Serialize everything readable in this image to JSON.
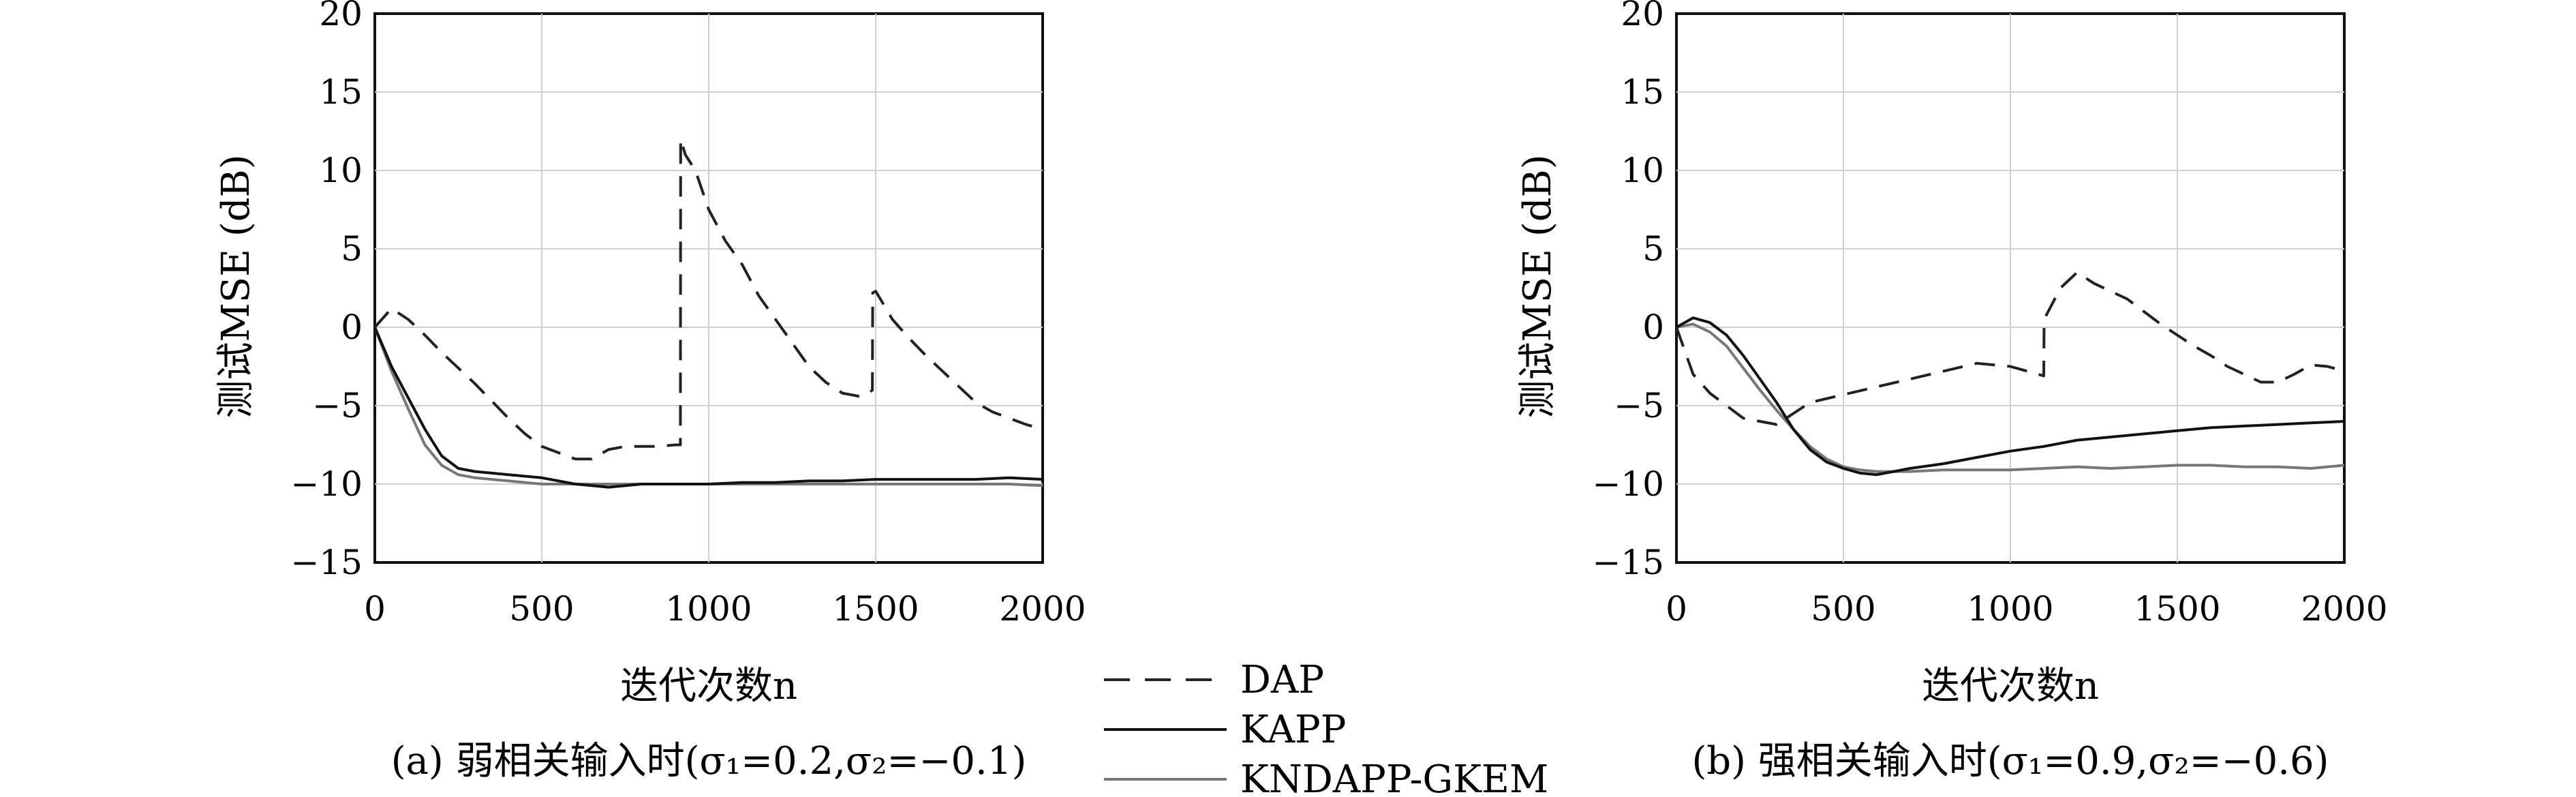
{
  "legend": [
    {
      "name": "DAP",
      "style": "dashed",
      "color": "#222222"
    },
    {
      "name": "KAPP",
      "style": "solid",
      "color": "#111111"
    },
    {
      "name": "KNDAPP-GKEM",
      "style": "solid",
      "color": "#777777"
    }
  ],
  "chart_data": [
    {
      "type": "line",
      "caption": "(a) 弱相关输入时(σ₁=0.2,σ₂=−0.1)",
      "xlabel": "迭代次数n",
      "ylabel": "测试MSE (dB)",
      "xlim": [
        0,
        2000
      ],
      "ylim": [
        -15,
        20
      ],
      "xticks": [
        "0",
        "500",
        "1000",
        "1500",
        "2000"
      ],
      "yticks": [
        "20",
        "15",
        "10",
        "5",
        "0",
        "−5",
        "−10",
        "−15"
      ],
      "grid": true,
      "series": [
        {
          "name": "DAP",
          "x": [
            0,
            50,
            100,
            150,
            200,
            250,
            300,
            350,
            400,
            450,
            500,
            550,
            600,
            650,
            700,
            750,
            800,
            850,
            900,
            915,
            916,
            930,
            960,
            1000,
            1050,
            1100,
            1150,
            1200,
            1250,
            1300,
            1350,
            1400,
            1450,
            1480,
            1490,
            1491,
            1500,
            1550,
            1600,
            1650,
            1700,
            1750,
            1800,
            1850,
            1900,
            1950,
            2000
          ],
          "y": [
            0,
            1.2,
            0.5,
            -0.5,
            -1.6,
            -2.6,
            -3.6,
            -4.7,
            -5.8,
            -6.8,
            -7.6,
            -8.0,
            -8.4,
            -8.4,
            -7.8,
            -7.6,
            -7.6,
            -7.6,
            -7.5,
            -7.5,
            12.0,
            11.0,
            10.0,
            7.5,
            5.5,
            4.0,
            2.0,
            0.5,
            -1.0,
            -2.5,
            -3.5,
            -4.2,
            -4.4,
            -4.2,
            -4.0,
            2.2,
            2.3,
            0.5,
            -0.7,
            -1.8,
            -2.8,
            -3.8,
            -4.8,
            -5.4,
            -5.8,
            -6.2,
            -6.5
          ]
        },
        {
          "name": "KAPP",
          "x": [
            0,
            50,
            100,
            150,
            200,
            250,
            300,
            350,
            400,
            450,
            500,
            550,
            600,
            650,
            700,
            800,
            900,
            1000,
            1100,
            1200,
            1300,
            1400,
            1500,
            1600,
            1700,
            1800,
            1900,
            2000
          ],
          "y": [
            0,
            -2.5,
            -4.5,
            -6.5,
            -8.2,
            -9.0,
            -9.2,
            -9.3,
            -9.4,
            -9.5,
            -9.6,
            -9.8,
            -10.0,
            -10.1,
            -10.2,
            -10.0,
            -10.0,
            -10.0,
            -9.9,
            -9.9,
            -9.8,
            -9.8,
            -9.7,
            -9.7,
            -9.7,
            -9.7,
            -9.6,
            -9.7
          ]
        },
        {
          "name": "KNDAPP-GKEM",
          "x": [
            0,
            50,
            100,
            150,
            200,
            250,
            300,
            350,
            400,
            450,
            500,
            600,
            700,
            800,
            900,
            1000,
            1100,
            1200,
            1300,
            1400,
            1500,
            1600,
            1700,
            1800,
            1900,
            2000
          ],
          "y": [
            0,
            -2.8,
            -5.2,
            -7.5,
            -8.8,
            -9.4,
            -9.6,
            -9.7,
            -9.8,
            -9.9,
            -10.0,
            -10.0,
            -10.0,
            -10.0,
            -10.0,
            -10.0,
            -10.0,
            -10.0,
            -10.0,
            -10.0,
            -10.0,
            -10.0,
            -10.0,
            -10.0,
            -10.0,
            -10.1
          ]
        }
      ]
    },
    {
      "type": "line",
      "caption": "(b) 强相关输入时(σ₁=0.9,σ₂=−0.6)",
      "xlabel": "迭代次数n",
      "ylabel": "测试MSE (dB)",
      "xlim": [
        0,
        2000
      ],
      "ylim": [
        -15,
        20
      ],
      "xticks": [
        "0",
        "500",
        "1000",
        "1500",
        "2000"
      ],
      "yticks": [
        "20",
        "15",
        "10",
        "5",
        "0",
        "−5",
        "−10",
        "−15"
      ],
      "grid": true,
      "series": [
        {
          "name": "DAP",
          "x": [
            0,
            50,
            100,
            150,
            200,
            250,
            300,
            350,
            400,
            500,
            600,
            700,
            800,
            900,
            1000,
            1050,
            1100,
            1101,
            1150,
            1200,
            1250,
            1300,
            1350,
            1400,
            1450,
            1500,
            1550,
            1600,
            1650,
            1700,
            1750,
            1800,
            1850,
            1900,
            1950,
            2000
          ],
          "y": [
            0,
            -3.0,
            -4.2,
            -5.0,
            -5.8,
            -6.0,
            -6.2,
            -5.5,
            -4.8,
            -4.3,
            -3.8,
            -3.3,
            -2.8,
            -2.3,
            -2.5,
            -2.8,
            -3.1,
            0.5,
            2.5,
            3.5,
            2.8,
            2.3,
            1.8,
            1.0,
            0.2,
            -0.5,
            -1.2,
            -1.8,
            -2.5,
            -3.0,
            -3.5,
            -3.5,
            -3.0,
            -2.4,
            -2.5,
            -2.8
          ]
        },
        {
          "name": "KAPP",
          "x": [
            0,
            50,
            100,
            150,
            200,
            250,
            300,
            350,
            400,
            450,
            500,
            550,
            600,
            650,
            700,
            800,
            900,
            1000,
            1100,
            1200,
            1300,
            1400,
            1500,
            1600,
            1700,
            1800,
            1900,
            2000
          ],
          "y": [
            0,
            0.6,
            0.3,
            -0.5,
            -1.8,
            -3.3,
            -4.8,
            -6.5,
            -7.8,
            -8.6,
            -9.0,
            -9.3,
            -9.4,
            -9.2,
            -9.0,
            -8.7,
            -8.3,
            -7.9,
            -7.6,
            -7.2,
            -7.0,
            -6.8,
            -6.6,
            -6.4,
            -6.3,
            -6.2,
            -6.1,
            -6.0
          ]
        },
        {
          "name": "KNDAPP-GKEM",
          "x": [
            0,
            50,
            100,
            150,
            200,
            250,
            300,
            350,
            400,
            450,
            500,
            550,
            600,
            700,
            800,
            900,
            1000,
            1100,
            1200,
            1300,
            1400,
            1500,
            1600,
            1700,
            1800,
            1900,
            2000
          ],
          "y": [
            0,
            0.2,
            -0.3,
            -1.2,
            -2.6,
            -4.0,
            -5.3,
            -6.5,
            -7.6,
            -8.4,
            -8.9,
            -9.1,
            -9.2,
            -9.2,
            -9.1,
            -9.1,
            -9.1,
            -9.0,
            -8.9,
            -9.0,
            -8.9,
            -8.8,
            -8.8,
            -8.9,
            -8.9,
            -9.0,
            -8.8
          ]
        }
      ]
    }
  ]
}
